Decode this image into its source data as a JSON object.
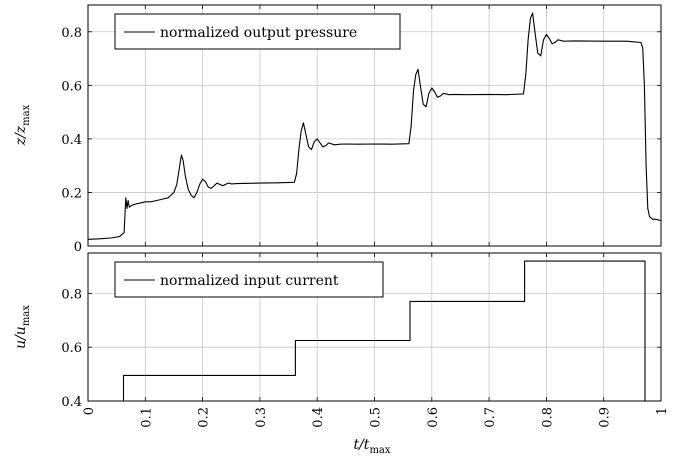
{
  "chart_data": [
    {
      "type": "line",
      "title": "",
      "xlabel": "",
      "ylabel": "z/z_max",
      "ylabel_main": "z/z",
      "ylabel_sub": "max",
      "xlim": [
        0,
        1
      ],
      "ylim": [
        0,
        0.9
      ],
      "yticks": [
        0,
        0.2,
        0.4,
        0.6,
        0.8
      ],
      "ytick_labels": [
        "0",
        "0.2",
        "0.4",
        "0.6",
        "0.8"
      ],
      "xticks": [
        0,
        0.1,
        0.2,
        0.3,
        0.4,
        0.5,
        0.6,
        0.7,
        0.8,
        0.9,
        1
      ],
      "grid": true,
      "legend": "top-left",
      "series": [
        {
          "name": "normalized output pressure",
          "color": "#000000",
          "x": [
            0,
            0.02,
            0.04,
            0.055,
            0.063,
            0.066,
            0.068,
            0.07,
            0.072,
            0.075,
            0.08,
            0.09,
            0.1,
            0.11,
            0.12,
            0.13,
            0.14,
            0.15,
            0.155,
            0.16,
            0.163,
            0.166,
            0.17,
            0.175,
            0.18,
            0.185,
            0.19,
            0.195,
            0.2,
            0.205,
            0.21,
            0.215,
            0.22,
            0.225,
            0.23,
            0.235,
            0.24,
            0.245,
            0.25,
            0.26,
            0.28,
            0.3,
            0.33,
            0.36,
            0.364,
            0.368,
            0.372,
            0.376,
            0.38,
            0.385,
            0.39,
            0.395,
            0.4,
            0.405,
            0.41,
            0.415,
            0.42,
            0.43,
            0.44,
            0.45,
            0.47,
            0.5,
            0.53,
            0.56,
            0.564,
            0.568,
            0.572,
            0.576,
            0.58,
            0.585,
            0.59,
            0.595,
            0.6,
            0.605,
            0.61,
            0.615,
            0.62,
            0.63,
            0.64,
            0.66,
            0.7,
            0.73,
            0.76,
            0.764,
            0.768,
            0.772,
            0.776,
            0.78,
            0.785,
            0.79,
            0.795,
            0.8,
            0.805,
            0.81,
            0.815,
            0.82,
            0.83,
            0.85,
            0.9,
            0.94,
            0.965,
            0.968,
            0.971,
            0.974,
            0.977,
            0.98,
            0.985,
            0.99,
            1.0
          ],
          "y": [
            0.025,
            0.027,
            0.03,
            0.035,
            0.05,
            0.18,
            0.14,
            0.17,
            0.145,
            0.15,
            0.155,
            0.16,
            0.165,
            0.165,
            0.17,
            0.175,
            0.18,
            0.2,
            0.23,
            0.3,
            0.34,
            0.32,
            0.26,
            0.21,
            0.19,
            0.18,
            0.2,
            0.23,
            0.25,
            0.24,
            0.22,
            0.215,
            0.225,
            0.235,
            0.23,
            0.225,
            0.23,
            0.235,
            0.232,
            0.233,
            0.234,
            0.235,
            0.236,
            0.238,
            0.27,
            0.36,
            0.43,
            0.46,
            0.42,
            0.37,
            0.36,
            0.39,
            0.4,
            0.385,
            0.37,
            0.375,
            0.385,
            0.378,
            0.38,
            0.381,
            0.38,
            0.381,
            0.38,
            0.382,
            0.45,
            0.58,
            0.64,
            0.66,
            0.6,
            0.53,
            0.52,
            0.57,
            0.59,
            0.575,
            0.555,
            0.56,
            0.57,
            0.565,
            0.566,
            0.565,
            0.566,
            0.565,
            0.568,
            0.64,
            0.77,
            0.85,
            0.87,
            0.8,
            0.72,
            0.71,
            0.77,
            0.79,
            0.775,
            0.755,
            0.76,
            0.77,
            0.765,
            0.766,
            0.765,
            0.765,
            0.76,
            0.74,
            0.6,
            0.3,
            0.14,
            0.11,
            0.1,
            0.1,
            0.095
          ]
        }
      ]
    },
    {
      "type": "line",
      "title": "",
      "xlabel": "t/t_max",
      "xlabel_main": "t/t",
      "xlabel_sub": "max",
      "ylabel": "u/u_max",
      "ylabel_main": "u/u",
      "ylabel_sub": "max",
      "xlim": [
        0,
        1
      ],
      "ylim": [
        0.4,
        0.95
      ],
      "yticks": [
        0.4,
        0.6,
        0.8
      ],
      "ytick_labels": [
        "0.4",
        "0.6",
        "0.8"
      ],
      "xticks": [
        0,
        0.1,
        0.2,
        0.3,
        0.4,
        0.5,
        0.6,
        0.7,
        0.8,
        0.9,
        1
      ],
      "xtick_labels": [
        "0",
        "0.1",
        "0.2",
        "0.3",
        "0.4",
        "0.5",
        "0.6",
        "0.7",
        "0.8",
        "0.9",
        "1"
      ],
      "grid": true,
      "legend": "top-left",
      "series": [
        {
          "name": "normalized input current",
          "color": "#000000",
          "x": [
            0.062,
            0.062,
            0.362,
            0.362,
            0.562,
            0.562,
            0.762,
            0.762,
            0.972,
            0.972
          ],
          "y": [
            0.4,
            0.495,
            0.495,
            0.625,
            0.625,
            0.77,
            0.77,
            0.92,
            0.92,
            0.4
          ]
        }
      ]
    }
  ]
}
